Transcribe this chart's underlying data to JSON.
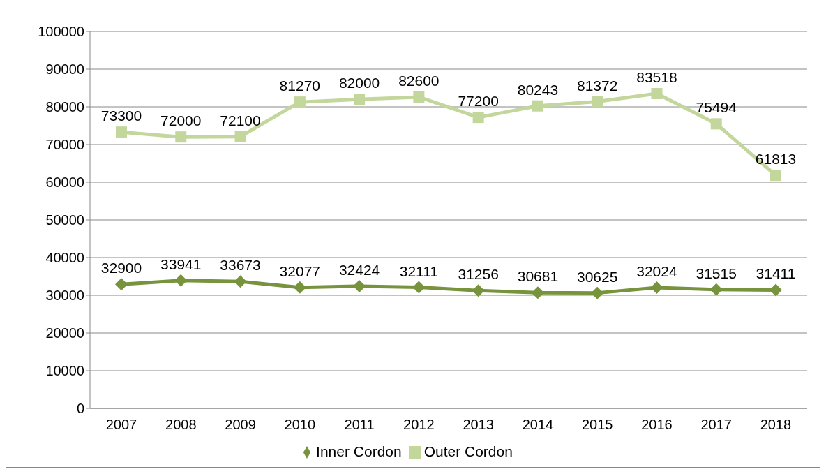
{
  "chart_data": {
    "type": "line",
    "categories": [
      "2007",
      "2008",
      "2009",
      "2010",
      "2011",
      "2012",
      "2013",
      "2014",
      "2015",
      "2016",
      "2017",
      "2018"
    ],
    "series": [
      {
        "name": "Inner Cordon",
        "color": "#77933c",
        "marker": "diamond",
        "values": [
          32900,
          33941,
          33673,
          32077,
          32424,
          32111,
          31256,
          30681,
          30625,
          32024,
          31515,
          31411
        ]
      },
      {
        "name": "Outer Cordon",
        "color": "#c3d69b",
        "marker": "square",
        "values": [
          73300,
          72000,
          72100,
          81270,
          82000,
          82600,
          77200,
          80243,
          81372,
          83518,
          75494,
          61813
        ]
      }
    ],
    "ylim": [
      0,
      100000
    ],
    "yticks": [
      0,
      10000,
      20000,
      30000,
      40000,
      50000,
      60000,
      70000,
      80000,
      90000,
      100000
    ],
    "grid": "y",
    "legend": "bottom",
    "data_labels": true,
    "line_style": "solid"
  }
}
